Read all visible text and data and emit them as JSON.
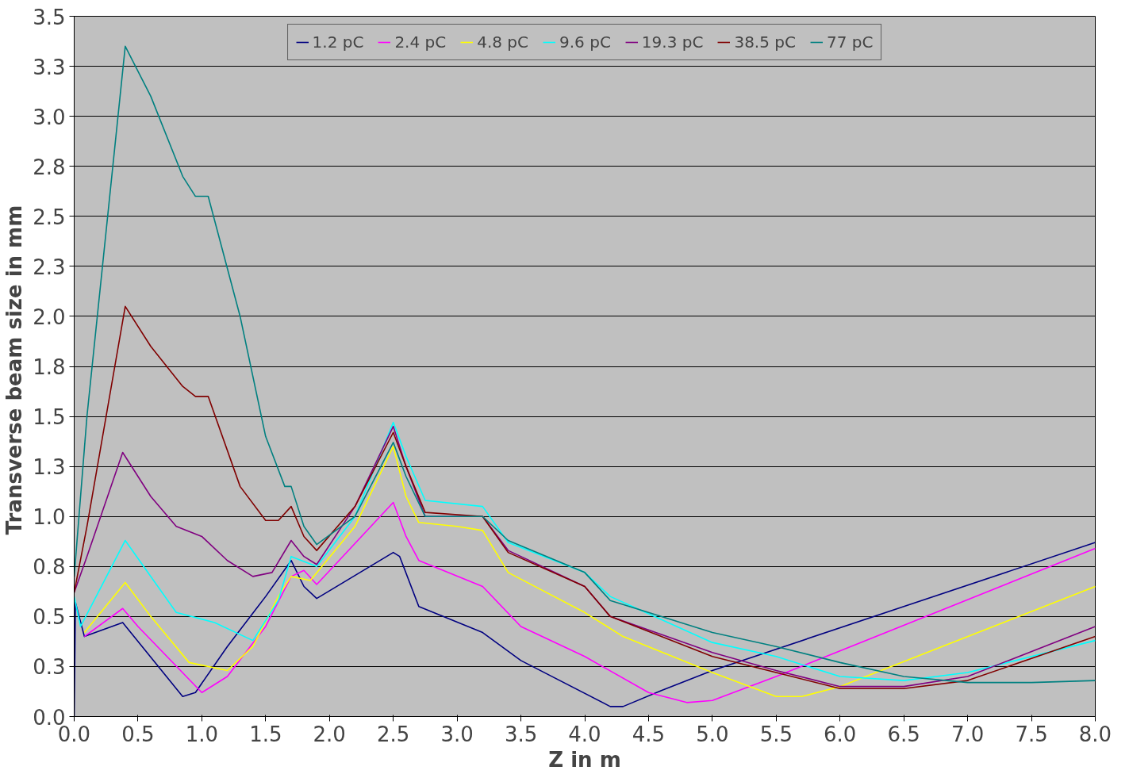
{
  "chart_data": {
    "type": "line",
    "xlabel": "Z in m",
    "ylabel": "Transverse beam size  in mm",
    "xlim": [
      0,
      8
    ],
    "ylim": [
      0,
      3.5
    ],
    "xticks": [
      {
        "value": 0,
        "label": "0.0"
      },
      0.5,
      {
        "value": 1,
        "label": "1.0"
      },
      1.5,
      {
        "value": 2,
        "label": "2.0"
      },
      2.5,
      {
        "value": 3,
        "label": "3.0"
      },
      3.5,
      {
        "value": 4,
        "label": "4.0"
      },
      4.5,
      {
        "value": 5,
        "label": "5.0"
      },
      5.5,
      {
        "value": 6,
        "label": "6.0"
      },
      6.5,
      {
        "value": 7,
        "label": "7.0"
      },
      7.5,
      {
        "value": 8,
        "label": "8.0"
      }
    ],
    "yticks": [
      {
        "value": 0,
        "label": "0.0"
      },
      {
        "value": 0.25,
        "label": "0.3"
      },
      0.5,
      {
        "value": 0.75,
        "label": "0.8"
      },
      {
        "value": 1,
        "label": "1.0"
      },
      {
        "value": 1.25,
        "label": "1.3"
      },
      1.5,
      {
        "value": 1.75,
        "label": "1.8"
      },
      {
        "value": 2,
        "label": "2.0"
      },
      {
        "value": 2.25,
        "label": "2.3"
      },
      2.5,
      {
        "value": 2.75,
        "label": "2.8"
      },
      {
        "value": 3,
        "label": "3.0"
      },
      {
        "value": 3.25,
        "label": "3.3"
      },
      3.5
    ],
    "grid": "y",
    "legend": "top",
    "line_style": "solid",
    "marker": "none",
    "series": [
      {
        "name": "1.2 pC",
        "color": "#000080",
        "x": [
          0,
          0.01,
          0.08,
          0.38,
          0.85,
          0.95,
          1.2,
          1.5,
          1.7,
          1.8,
          1.9,
          2.5,
          2.55,
          2.7,
          3.2,
          3.5,
          4.2,
          4.3,
          4.6,
          5.0,
          8.0
        ],
        "values": [
          0,
          0.57,
          0.4,
          0.47,
          0.1,
          0.12,
          0.35,
          0.6,
          0.78,
          0.65,
          0.59,
          0.82,
          0.8,
          0.55,
          0.42,
          0.28,
          0.05,
          0.05,
          0.13,
          0.23,
          0.87
        ]
      },
      {
        "name": "2.4 pC",
        "color": "#ff00ff",
        "x": [
          0.08,
          0.38,
          0.5,
          1.0,
          1.2,
          1.5,
          1.7,
          1.8,
          1.9,
          2.5,
          2.6,
          2.7,
          3.2,
          3.5,
          4.0,
          4.5,
          4.8,
          5.0,
          5.5,
          8.0
        ],
        "values": [
          0.4,
          0.54,
          0.45,
          0.12,
          0.2,
          0.45,
          0.7,
          0.73,
          0.66,
          1.07,
          0.9,
          0.78,
          0.65,
          0.45,
          0.3,
          0.12,
          0.07,
          0.08,
          0.2,
          0.84
        ]
      },
      {
        "name": "4.8 pC",
        "color": "#ffff00",
        "x": [
          0.08,
          0.4,
          0.6,
          0.9,
          1.2,
          1.4,
          1.6,
          1.7,
          1.85,
          2.2,
          2.5,
          2.6,
          2.7,
          3.0,
          3.2,
          3.4,
          4.0,
          4.3,
          5.0,
          5.5,
          5.7,
          6.0,
          8.0
        ],
        "values": [
          0.42,
          0.67,
          0.5,
          0.27,
          0.23,
          0.35,
          0.6,
          0.7,
          0.68,
          0.95,
          1.35,
          1.1,
          0.97,
          0.95,
          0.93,
          0.72,
          0.52,
          0.4,
          0.22,
          0.1,
          0.1,
          0.15,
          0.65
        ]
      },
      {
        "name": "9.6 pC",
        "color": "#00ffff",
        "x": [
          0,
          0.05,
          0.4,
          0.8,
          1.1,
          1.4,
          1.6,
          1.7,
          1.9,
          2.2,
          2.5,
          2.6,
          2.75,
          3.2,
          3.4,
          4.0,
          4.2,
          5.0,
          5.5,
          6.0,
          6.5,
          7.0,
          8.0
        ],
        "values": [
          0.6,
          0.45,
          0.88,
          0.52,
          0.47,
          0.38,
          0.58,
          0.8,
          0.75,
          1.0,
          1.47,
          1.3,
          1.08,
          1.05,
          0.87,
          0.72,
          0.6,
          0.37,
          0.3,
          0.2,
          0.18,
          0.22,
          0.38
        ]
      },
      {
        "name": "19.3 pC",
        "color": "#800080",
        "x": [
          0,
          0.1,
          0.38,
          0.6,
          0.8,
          1.0,
          1.2,
          1.4,
          1.55,
          1.7,
          1.8,
          1.9,
          2.2,
          2.5,
          2.6,
          2.75,
          3.2,
          3.4,
          4.0,
          4.2,
          5.0,
          5.5,
          6.0,
          6.5,
          7.0,
          8.0
        ],
        "values": [
          0.62,
          0.8,
          1.32,
          1.1,
          0.95,
          0.9,
          0.78,
          0.7,
          0.72,
          0.88,
          0.8,
          0.76,
          1.05,
          1.45,
          1.25,
          1.0,
          1.0,
          0.83,
          0.65,
          0.5,
          0.32,
          0.23,
          0.15,
          0.15,
          0.2,
          0.45
        ]
      },
      {
        "name": "38.5 pC",
        "color": "#800000",
        "x": [
          0,
          0.1,
          0.4,
          0.6,
          0.85,
          0.95,
          1.05,
          1.3,
          1.5,
          1.6,
          1.7,
          1.8,
          1.9,
          2.2,
          2.5,
          2.6,
          2.75,
          3.2,
          3.4,
          4.0,
          4.2,
          5.0,
          5.5,
          6.0,
          6.5,
          7.0,
          8.0
        ],
        "values": [
          0.62,
          0.95,
          2.05,
          1.85,
          1.65,
          1.6,
          1.6,
          1.15,
          0.98,
          0.98,
          1.05,
          0.9,
          0.83,
          1.05,
          1.42,
          1.25,
          1.02,
          1.0,
          0.82,
          0.65,
          0.5,
          0.3,
          0.22,
          0.14,
          0.14,
          0.18,
          0.4
        ]
      },
      {
        "name": "77 pC",
        "color": "#008080",
        "x": [
          0,
          0.1,
          0.4,
          0.6,
          0.85,
          0.95,
          1.05,
          1.3,
          1.5,
          1.65,
          1.7,
          1.8,
          1.9,
          2.2,
          2.5,
          2.6,
          2.75,
          3.2,
          3.4,
          4.0,
          4.2,
          5.0,
          5.5,
          6.0,
          6.5,
          7.0,
          7.5,
          8.0
        ],
        "values": [
          0.7,
          1.5,
          3.35,
          3.1,
          2.7,
          2.6,
          2.6,
          2.0,
          1.4,
          1.15,
          1.15,
          0.95,
          0.86,
          1.0,
          1.37,
          1.2,
          1.0,
          1.0,
          0.88,
          0.72,
          0.58,
          0.42,
          0.35,
          0.27,
          0.2,
          0.17,
          0.17,
          0.18
        ]
      }
    ]
  }
}
